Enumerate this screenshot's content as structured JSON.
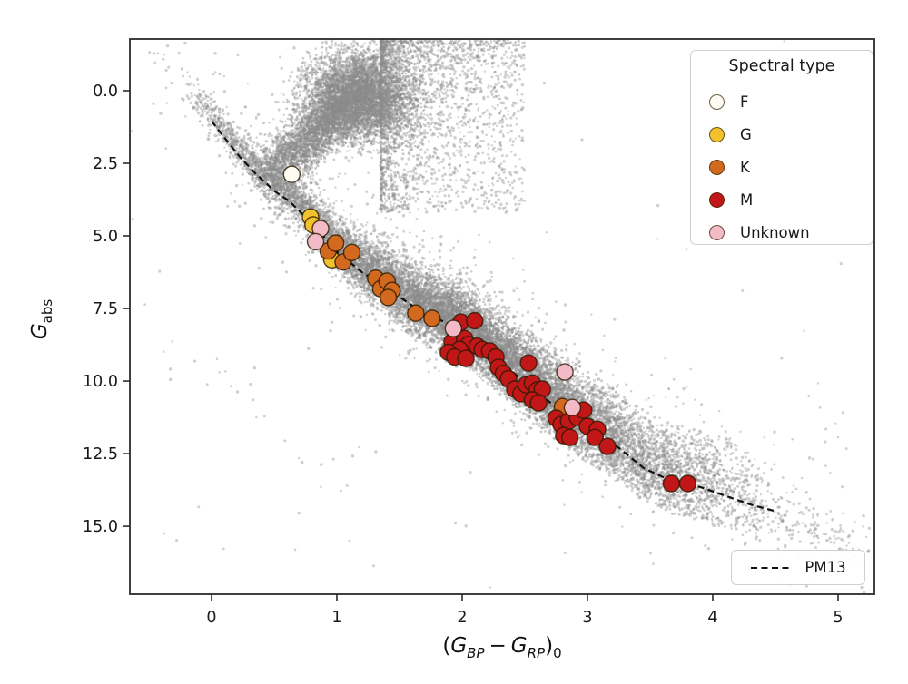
{
  "figure": {
    "background": "#ffffff"
  },
  "chart_data": {
    "type": "scatter",
    "title": "",
    "grid": false,
    "xlabel": {
      "t_open": "(",
      "g1": "G",
      "s1": "BP",
      "t_minus": "−",
      "g2": "G",
      "s2": "RP",
      "t_close": ")",
      "s_zero": "0"
    },
    "ylabel": {
      "g": "G",
      "sub": "abs"
    },
    "xlim": [
      -0.652,
      5.29
    ],
    "ylim_bottom": 17.34,
    "ylim_top": -1.78,
    "x_ticks": [
      {
        "value": 0,
        "label": "0"
      },
      {
        "value": 1,
        "label": "1"
      },
      {
        "value": 2,
        "label": "2"
      },
      {
        "value": 3,
        "label": "3"
      },
      {
        "value": 4,
        "label": "4"
      },
      {
        "value": 5,
        "label": "5"
      }
    ],
    "y_ticks": [
      {
        "value": 0.0,
        "label": "0.0"
      },
      {
        "value": 2.5,
        "label": "2.5"
      },
      {
        "value": 5.0,
        "label": "5.0"
      },
      {
        "value": 7.5,
        "label": "7.5"
      },
      {
        "value": 10.0,
        "label": "10.0"
      },
      {
        "value": 12.5,
        "label": "12.5"
      },
      {
        "value": 15.0,
        "label": "15.0"
      }
    ],
    "legend": {
      "title": "Spectral type",
      "position": "upper right",
      "entries": [
        {
          "label": "F",
          "color": "#fcfcf2"
        },
        {
          "label": "G",
          "color": "#f2c12e"
        },
        {
          "label": "K",
          "color": "#d2691e"
        },
        {
          "label": "M",
          "color": "#c21718"
        },
        {
          "label": "Unknown",
          "color": "#f3bac7"
        }
      ]
    },
    "line_legend": {
      "label": "PM13",
      "position": "lower right",
      "style": "dashed",
      "color": "#111111"
    },
    "pm13_line": {
      "name": "PM13 empirical main sequence",
      "style": "dashed",
      "color": "#111111",
      "points": [
        [
          0.0,
          1.05
        ],
        [
          0.1,
          1.6
        ],
        [
          0.22,
          2.25
        ],
        [
          0.35,
          2.85
        ],
        [
          0.5,
          3.45
        ],
        [
          0.62,
          3.8
        ],
        [
          0.75,
          4.35
        ],
        [
          0.88,
          4.95
        ],
        [
          1.0,
          5.55
        ],
        [
          1.2,
          6.25
        ],
        [
          1.45,
          6.95
        ],
        [
          1.65,
          7.55
        ],
        [
          1.95,
          8.15
        ],
        [
          2.1,
          8.6
        ],
        [
          2.3,
          9.3
        ],
        [
          2.5,
          10.05
        ],
        [
          2.75,
          10.9
        ],
        [
          3.0,
          11.65
        ],
        [
          3.25,
          12.3
        ],
        [
          3.45,
          13.0
        ],
        [
          3.65,
          13.4
        ],
        [
          3.9,
          13.65
        ],
        [
          4.1,
          13.95
        ],
        [
          4.3,
          14.25
        ],
        [
          4.49,
          14.47
        ]
      ]
    },
    "stars": {
      "marker_radius_px": 9,
      "edge_color": "rgba(40,25,0,0.8)",
      "F": [
        [
          0.64,
          2.88
        ]
      ],
      "G": [
        [
          0.79,
          4.35
        ],
        [
          0.81,
          4.62
        ],
        [
          0.96,
          5.82
        ]
      ],
      "K": [
        [
          0.93,
          5.52
        ],
        [
          0.99,
          5.25
        ],
        [
          1.05,
          5.9
        ],
        [
          1.12,
          5.57
        ],
        [
          1.31,
          6.46
        ],
        [
          1.35,
          6.82
        ],
        [
          1.4,
          6.56
        ],
        [
          1.44,
          6.88
        ],
        [
          1.41,
          7.12
        ],
        [
          1.63,
          7.66
        ],
        [
          1.76,
          7.84
        ],
        [
          2.8,
          10.88
        ]
      ],
      "M": [
        [
          1.99,
          7.97
        ],
        [
          2.1,
          7.92
        ],
        [
          1.92,
          8.65
        ],
        [
          2.02,
          8.54
        ],
        [
          2.05,
          8.75
        ],
        [
          2.12,
          8.8
        ],
        [
          2.16,
          8.91
        ],
        [
          1.98,
          8.91
        ],
        [
          1.89,
          9.01
        ],
        [
          1.94,
          9.17
        ],
        [
          2.03,
          9.22
        ],
        [
          2.22,
          8.96
        ],
        [
          2.27,
          9.17
        ],
        [
          2.29,
          9.53
        ],
        [
          2.33,
          9.74
        ],
        [
          2.37,
          9.92
        ],
        [
          2.53,
          9.38
        ],
        [
          2.42,
          10.28
        ],
        [
          2.47,
          10.44
        ],
        [
          2.51,
          10.13
        ],
        [
          2.56,
          10.07
        ],
        [
          2.6,
          10.31
        ],
        [
          2.64,
          10.28
        ],
        [
          2.56,
          10.65
        ],
        [
          2.61,
          10.75
        ],
        [
          2.75,
          11.28
        ],
        [
          2.79,
          11.5
        ],
        [
          2.85,
          11.38
        ],
        [
          2.92,
          11.25
        ],
        [
          2.81,
          11.88
        ],
        [
          2.86,
          11.94
        ],
        [
          2.97,
          11.0
        ],
        [
          3.0,
          11.56
        ],
        [
          3.08,
          11.66
        ],
        [
          3.06,
          11.94
        ],
        [
          3.16,
          12.25
        ],
        [
          3.67,
          13.53
        ],
        [
          3.8,
          13.53
        ]
      ],
      "Unknown": [
        [
          0.87,
          4.75
        ],
        [
          0.83,
          5.2
        ],
        [
          1.93,
          8.19
        ],
        [
          2.82,
          9.69
        ],
        [
          2.88,
          10.91
        ]
      ]
    },
    "field_cloud": {
      "description": "Gaia field-star background (procedural)",
      "seed": 42,
      "point_color": "138,138,138",
      "point_alpha": 0.4,
      "ridge_ext_pre": [
        [
          -0.25,
          0.1
        ],
        [
          -0.1,
          0.55
        ]
      ],
      "ridge_ext_post": [
        [
          4.8,
          14.9
        ],
        [
          5.2,
          15.6
        ]
      ],
      "components": [
        {
          "name": "main-sequence-band",
          "type": "ridge_band",
          "n": 15000,
          "c_min": -0.25,
          "c_max": 4.55,
          "c_bias": "mid",
          "sigma_base": 0.3,
          "sigma_slope": 0.16,
          "mean_offset": -0.25,
          "clip_lo": -2.0,
          "clip_hi": 1.15
        },
        {
          "name": "ms-outliers",
          "type": "ridge_band",
          "n": 900,
          "c_min": -0.2,
          "c_max": 4.3,
          "c_bias": "mid",
          "sigma_base": 0.9,
          "sigma_slope": 0.25,
          "mean_offset": -0.5,
          "clip_lo": -3.2,
          "clip_hi": 2.2
        },
        {
          "name": "red-clump-giants",
          "type": "gauss2d",
          "n": 5200,
          "cx": 1.17,
          "cy": 0.2,
          "sx": 0.21,
          "sy": 0.75
        },
        {
          "name": "subgiant-branch",
          "type": "segment",
          "n": 2400,
          "x0": 0.5,
          "y0": 2.75,
          "x1": 1.05,
          "y1": 0.6,
          "sx": 0.09,
          "sy": 0.45
        },
        {
          "name": "reddened-diffuse",
          "type": "wedge",
          "n": 2400,
          "c0": 1.35,
          "c_span": 1.15,
          "m_top": -1.78,
          "m_bot": 4.2
        },
        {
          "name": "faint-red-tail",
          "type": "ridge_band",
          "n": 160,
          "c_min": 4.3,
          "c_max": 5.25,
          "c_bias": "flat",
          "sigma_base": 0.5,
          "sigma_slope": 0,
          "mean_offset": 0.1,
          "clip_lo": -1.2,
          "clip_hi": 1.6
        },
        {
          "name": "blue-faint-sparse",
          "type": "segment",
          "n": 26,
          "x0": -0.38,
          "y0": 8.4,
          "x1": 1.05,
          "y1": 13.6,
          "sx": 0.12,
          "sy": 0.55
        },
        {
          "name": "halo-near-band",
          "type": "ridge_band",
          "n": 420,
          "c_min": -0.5,
          "c_max": 5.1,
          "c_bias": "flat",
          "sigma_base": 1.6,
          "sigma_slope": 0.3,
          "mean_offset": -0.6,
          "clip_lo": -4.5,
          "clip_hi": 3.2
        },
        {
          "name": "halo-uniform",
          "type": "uniform",
          "n": 60
        }
      ]
    }
  }
}
